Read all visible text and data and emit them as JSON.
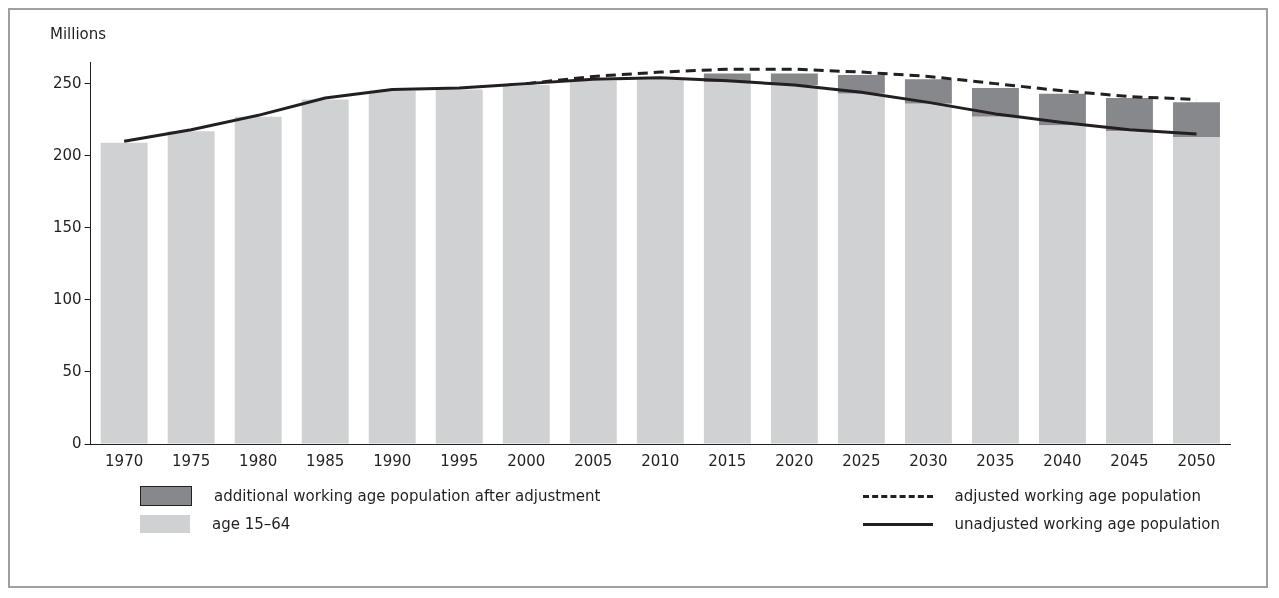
{
  "chart_data": {
    "type": "bar",
    "ylabel": "Millions",
    "categories": [
      "1970",
      "1975",
      "1980",
      "1985",
      "1990",
      "1995",
      "2000",
      "2005",
      "2010",
      "2015",
      "2020",
      "2025",
      "2030",
      "2035",
      "2040",
      "2045",
      "2050"
    ],
    "stacked": true,
    "series": [
      {
        "name": "age 15–64",
        "color": "#d0d1d3",
        "values": [
          209,
          217,
          227,
          239,
          245,
          246,
          249,
          252,
          253,
          251,
          249,
          243,
          236,
          227,
          221,
          217,
          213
        ]
      },
      {
        "name": "additional working age population after adjustment",
        "color": "#87888c",
        "values": [
          null,
          null,
          null,
          null,
          null,
          null,
          null,
          null,
          null,
          6,
          8,
          13,
          17,
          20,
          22,
          23,
          24
        ]
      },
      {
        "name": "adjusted working age population",
        "type": "line",
        "line_style": "dashed",
        "color": "#231f20",
        "values": [
          null,
          null,
          null,
          null,
          null,
          null,
          250,
          255,
          258,
          260,
          260,
          258,
          255,
          250,
          245,
          241,
          239
        ]
      },
      {
        "name": "unadjusted working age population",
        "type": "line",
        "line_style": "solid",
        "color": "#231f20",
        "values": [
          210,
          218,
          228,
          240,
          246,
          247,
          250,
          253,
          254,
          252,
          249,
          244,
          237,
          229,
          223,
          218,
          215
        ]
      }
    ],
    "ylim": [
      0,
      265
    ],
    "yticks": [
      0,
      50,
      100,
      150,
      200,
      250
    ],
    "grid": false,
    "legend": "bottom",
    "marker": "none"
  }
}
